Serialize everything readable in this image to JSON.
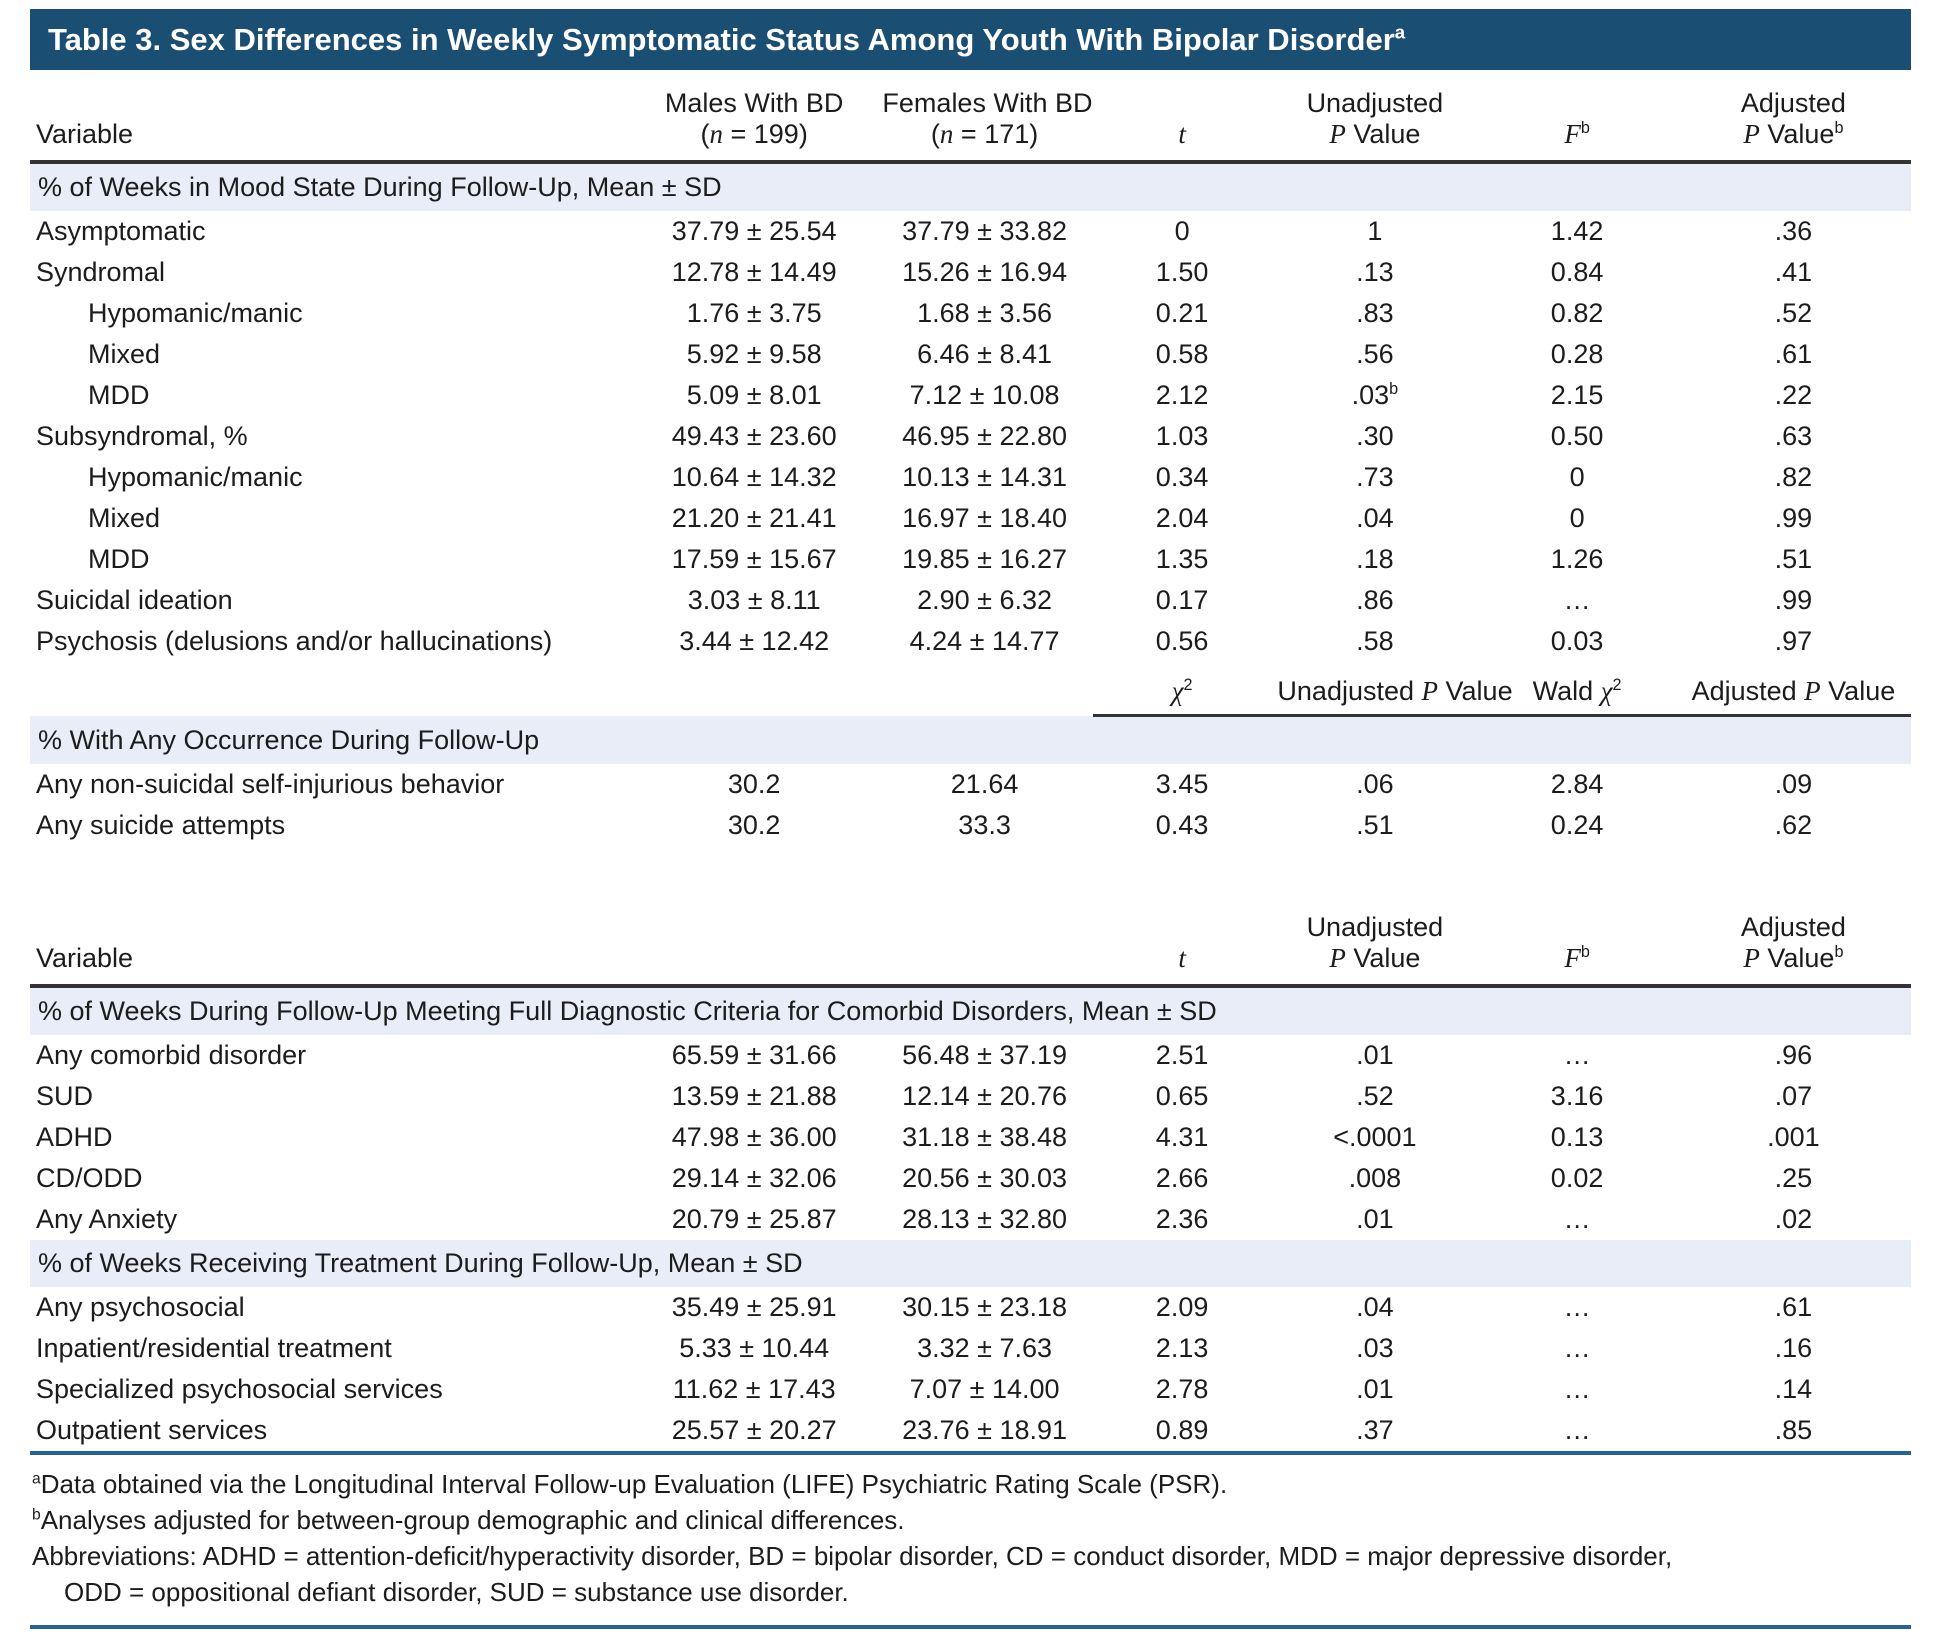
{
  "title": "Table 3. Sex Differences in Weekly Symptomatic Status Among Youth With Bipolar Disorder^{a}",
  "colors": {
    "title_bar_background": "#1b4e73",
    "title_text": "#ffffff",
    "section_band_background": "#e9edf7",
    "header_rule": "#333333",
    "blue_rule": "#266397",
    "body_text": "#1c1c1c"
  },
  "table": {
    "blocks": [
      {
        "type": "header",
        "cells": [
          "Variable",
          "Males With BD\n(*n* = 199)",
          "Females With BD\n(*n* = 171)",
          "*t*",
          "Unadjusted\n*P* Value",
          "*F*^{b}",
          "Adjusted\n*P* Value^{b}"
        ]
      },
      {
        "type": "band",
        "text": "% of Weeks in Mood State During Follow-Up, Mean ± SD"
      },
      {
        "type": "row",
        "label": "Asymptomatic",
        "indent": 0,
        "cells": [
          "37.79 ± 25.54",
          "37.79 ± 33.82",
          "0",
          "1",
          "1.42",
          ".36"
        ]
      },
      {
        "type": "row",
        "label": "Syndromal",
        "indent": 0,
        "cells": [
          "12.78 ± 14.49",
          "15.26 ± 16.94",
          "1.50",
          ".13",
          "0.84",
          ".41"
        ]
      },
      {
        "type": "row",
        "label": "Hypomanic/manic",
        "indent": 1,
        "cells": [
          "1.76 ± 3.75",
          "1.68 ± 3.56",
          "0.21",
          ".83",
          "0.82",
          ".52"
        ]
      },
      {
        "type": "row",
        "label": "Mixed",
        "indent": 1,
        "cells": [
          "5.92 ± 9.58",
          "6.46 ± 8.41",
          "0.58",
          ".56",
          "0.28",
          ".61"
        ]
      },
      {
        "type": "row",
        "label": "MDD",
        "indent": 1,
        "cells": [
          "5.09 ± 8.01",
          "7.12 ± 10.08",
          "2.12",
          ".03^{b}",
          "2.15",
          ".22"
        ]
      },
      {
        "type": "row",
        "label": "Subsyndromal, %",
        "indent": 0,
        "cells": [
          "49.43 ± 23.60",
          "46.95 ± 22.80",
          "1.03",
          ".30",
          "0.50",
          ".63"
        ]
      },
      {
        "type": "row",
        "label": "Hypomanic/manic",
        "indent": 1,
        "cells": [
          "10.64 ± 14.32",
          "10.13 ± 14.31",
          "0.34",
          ".73",
          "0",
          ".82"
        ]
      },
      {
        "type": "row",
        "label": "Mixed",
        "indent": 1,
        "cells": [
          "21.20 ± 21.41",
          "16.97 ± 18.40",
          "2.04",
          ".04",
          "0",
          ".99"
        ]
      },
      {
        "type": "row",
        "label": "MDD",
        "indent": 1,
        "cells": [
          "17.59 ± 15.67",
          "19.85 ± 16.27",
          "1.35",
          ".18",
          "1.26",
          ".51"
        ]
      },
      {
        "type": "row",
        "label": "Suicidal ideation",
        "indent": 0,
        "cells": [
          "3.03 ± 8.11",
          "2.90 ± 6.32",
          "0.17",
          ".86",
          "…",
          ".99"
        ]
      },
      {
        "type": "row",
        "label": "Psychosis (delusions and/or hallucinations)",
        "indent": 0,
        "cells": [
          "3.44 ± 12.42",
          "4.24 ± 14.77",
          "0.56",
          ".58",
          "0.03",
          ".97"
        ]
      },
      {
        "type": "subheader",
        "cells": [
          "",
          "",
          "",
          "*χ*^{2}",
          "Unadjusted *P* Value",
          "Wald *χ*^{2}",
          "Adjusted *P* Value"
        ]
      },
      {
        "type": "band",
        "text": "% With Any Occurrence During Follow-Up"
      },
      {
        "type": "row",
        "label": "Any non-suicidal self-injurious behavior",
        "indent": 0,
        "cells": [
          "30.2",
          "21.64",
          "3.45",
          ".06",
          "2.84",
          ".09"
        ]
      },
      {
        "type": "row",
        "label": "Any suicide attempts",
        "indent": 0,
        "cells": [
          "30.2",
          "33.3",
          "0.43",
          ".51",
          "0.24",
          ".62"
        ]
      },
      {
        "type": "spacer"
      },
      {
        "type": "header",
        "cells": [
          "Variable",
          "",
          "",
          "*t*",
          "Unadjusted\n*P* Value",
          "*F*^{b}",
          "Adjusted\n*P* Value^{b}"
        ]
      },
      {
        "type": "band",
        "text": "% of Weeks During Follow-Up Meeting Full Diagnostic Criteria for Comorbid Disorders, Mean ± SD"
      },
      {
        "type": "row",
        "label": "Any comorbid disorder",
        "indent": 0,
        "cells": [
          "65.59 ± 31.66",
          "56.48 ± 37.19",
          "2.51",
          ".01",
          "…",
          ".96"
        ]
      },
      {
        "type": "row",
        "label": "SUD",
        "indent": 0,
        "cells": [
          "13.59 ± 21.88",
          "12.14 ± 20.76",
          "0.65",
          ".52",
          "3.16",
          ".07"
        ]
      },
      {
        "type": "row",
        "label": "ADHD",
        "indent": 0,
        "cells": [
          "47.98 ± 36.00",
          "31.18 ± 38.48",
          "4.31",
          "<.0001",
          "0.13",
          ".001"
        ]
      },
      {
        "type": "row",
        "label": "CD/ODD",
        "indent": 0,
        "cells": [
          "29.14 ± 32.06",
          "20.56 ± 30.03",
          "2.66",
          ".008",
          "0.02",
          ".25"
        ]
      },
      {
        "type": "row",
        "label": "Any Anxiety",
        "indent": 0,
        "cells": [
          "20.79 ± 25.87",
          "28.13 ± 32.80",
          "2.36",
          ".01",
          "…",
          ".02"
        ]
      },
      {
        "type": "band",
        "text": "% of Weeks Receiving Treatment During Follow-Up, Mean ± SD"
      },
      {
        "type": "row",
        "label": "Any psychosocial",
        "indent": 0,
        "cells": [
          "35.49 ± 25.91",
          "30.15 ± 23.18",
          "2.09",
          ".04",
          "…",
          ".61"
        ]
      },
      {
        "type": "row",
        "label": "Inpatient/residential treatment",
        "indent": 0,
        "cells": [
          "5.33 ± 10.44",
          "3.32 ± 7.63",
          "2.13",
          ".03",
          "…",
          ".16"
        ]
      },
      {
        "type": "row",
        "label": "Specialized psychosocial services",
        "indent": 0,
        "cells": [
          "11.62 ± 17.43",
          "7.07 ± 14.00",
          "2.78",
          ".01",
          "…",
          ".14"
        ]
      },
      {
        "type": "row",
        "label": "Outpatient services",
        "indent": 0,
        "cells": [
          "25.57 ± 20.27",
          "23.76 ± 18.91",
          "0.89",
          ".37",
          "…",
          ".85"
        ]
      }
    ]
  },
  "footnotes": [
    {
      "text": "^{a}Data obtained via the Longitudinal Interval Follow-up Evaluation (LIFE) Psychiatric Rating Scale (PSR).",
      "indent": false
    },
    {
      "text": "^{b}Analyses adjusted for between-group demographic and clinical differences.",
      "indent": false
    },
    {
      "text": "Abbreviations: ADHD = attention-deficit/hyperactivity disorder, BD = bipolar disorder, CD = conduct disorder, MDD = major depressive disorder,",
      "indent": false
    },
    {
      "text": "ODD = oppositional defiant disorder, SUD = substance use disorder.",
      "indent": true
    }
  ]
}
